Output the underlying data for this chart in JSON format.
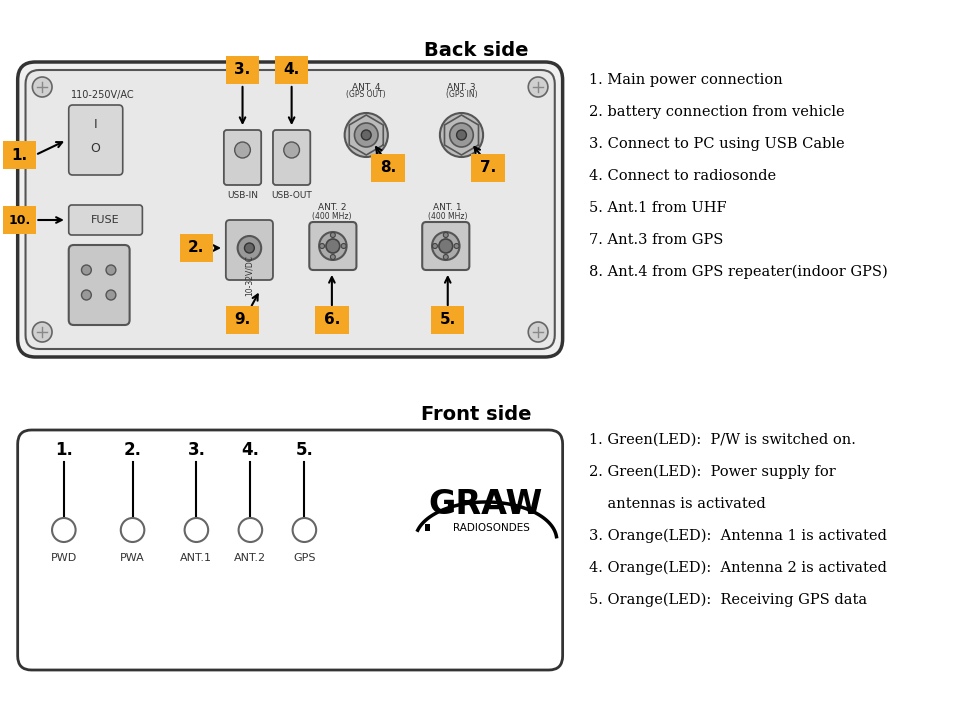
{
  "bg_color": "#ffffff",
  "orange_color": "#F5A623",
  "black_color": "#1a1a1a",
  "gray_color": "#888888",
  "light_gray": "#cccccc",
  "dark_gray": "#555555",
  "back_title": "Back side",
  "front_title": "Front side",
  "back_labels": [
    "1. Main power connection",
    "2. battery connection from vehicle",
    "3. Connect to PC using USB Cable",
    "4. Connect to radiosonde",
    "5. Ant.1 from UHF",
    "7. Ant.3 from GPS",
    "8. Ant.4 from GPS repeater(indoor GPS)"
  ],
  "front_labels": [
    "1. Green(LED):  P/W is switched on.",
    "2. Green(LED):  Power supply for",
    "    antennas is activated",
    "3. Orange(LED):  Antenna 1 is activated",
    "4. Orange(LED):  Antenna 2 is activated",
    "5. Orange(LED):  Receiving GPS data"
  ],
  "led_labels": [
    "PWD",
    "PWA",
    "ANT.1",
    "ANT.2",
    "GPS"
  ],
  "led_numbers": [
    "1.",
    "2.",
    "3.",
    "4.",
    "5."
  ]
}
